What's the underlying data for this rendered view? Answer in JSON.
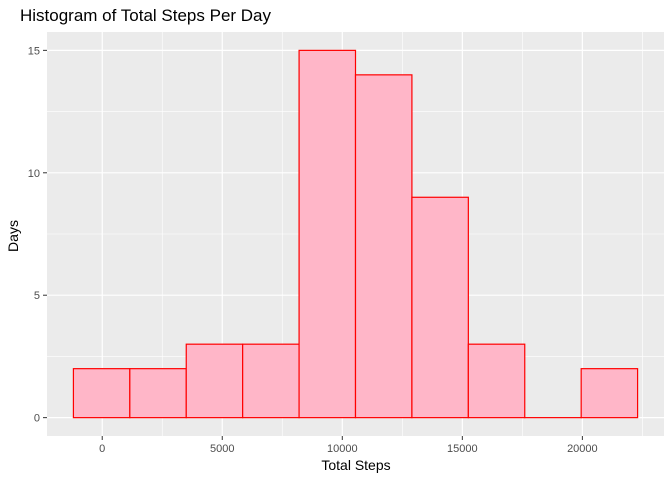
{
  "chart_data": {
    "type": "bar",
    "title": "Histogram of Total Steps Per Day",
    "xlabel": "Total Steps",
    "ylabel": "Days",
    "bins": [
      {
        "x0": -1200,
        "x1": 1150,
        "count": 2
      },
      {
        "x0": 1150,
        "x1": 3500,
        "count": 2
      },
      {
        "x0": 3500,
        "x1": 5850,
        "count": 3
      },
      {
        "x0": 5850,
        "x1": 8200,
        "count": 3
      },
      {
        "x0": 8200,
        "x1": 10550,
        "count": 15
      },
      {
        "x0": 10550,
        "x1": 12900,
        "count": 14
      },
      {
        "x0": 12900,
        "x1": 15250,
        "count": 9
      },
      {
        "x0": 15250,
        "x1": 17600,
        "count": 3
      },
      {
        "x0": 17600,
        "x1": 19950,
        "count": 0
      },
      {
        "x0": 19950,
        "x1": 22300,
        "count": 2
      }
    ],
    "xlim": [
      -2300,
      23400
    ],
    "ylim": [
      -0.75,
      15.75
    ],
    "x_ticks": [
      0,
      5000,
      10000,
      15000,
      20000
    ],
    "x_tick_labels": [
      "0",
      "5000",
      "10000",
      "15000",
      "20000"
    ],
    "y_ticks": [
      0,
      5,
      10,
      15
    ],
    "y_tick_labels": [
      "0",
      "5",
      "10",
      "15"
    ],
    "grid": true,
    "bar_fill": "#FFB6C8",
    "bar_stroke": "#FF0000",
    "panel_background": "#EBEBEB",
    "grid_color": "#FFFFFF"
  }
}
